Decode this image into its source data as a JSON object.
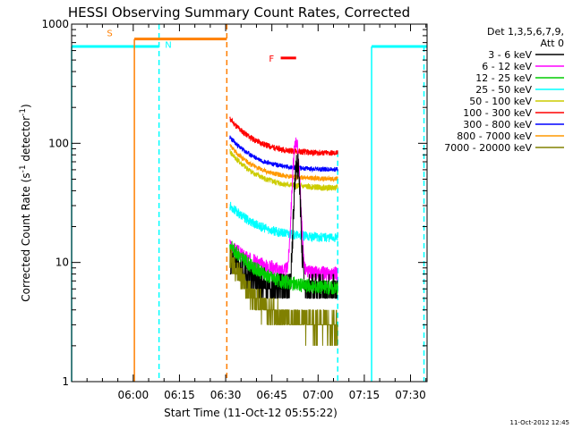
{
  "chart_data": {
    "type": "line",
    "title": "HESSI Observing Summary Count Rates, Corrected",
    "xlabel": "Start Time (11-Oct-12 05:55:22)",
    "ylabel": "Corrected Count Rate (s⁻¹ detector⁻¹)",
    "ylabel_main": "Corrected Count Rate (s",
    "ylabel_sup1": "-1",
    "ylabel_mid": " detector",
    "ylabel_sup2": "-1",
    "ylabel_end": ")",
    "footer": "11-Oct-2012 12:45",
    "yscale": "log",
    "ylim": [
      1,
      1000
    ],
    "xlim_minutes": [
      -15.37,
      100.0
    ],
    "x_units": "minutes after 05:55:22",
    "x_tick_labels": [
      "06:00",
      "06:15",
      "06:30",
      "06:45",
      "07:00",
      "07:15",
      "07:30"
    ],
    "y_tick_labels": [
      "1",
      "10",
      "100",
      "1000"
    ],
    "legend": {
      "placement": "right",
      "header_1": "Det 1,3,5,6,7,9,",
      "header_2": "Att 0",
      "entries": [
        {
          "label": "3 - 6 keV",
          "color": "#000000"
        },
        {
          "label": "6 - 12 keV",
          "color": "#ff00ff"
        },
        {
          "label": "12 - 25 keV",
          "color": "#00cc00"
        },
        {
          "label": "25 - 50 keV",
          "color": "#00ffff"
        },
        {
          "label": "50 - 100 keV",
          "color": "#cccc00"
        },
        {
          "label": "100 - 300 keV",
          "color": "#ff0000"
        },
        {
          "label": "300 - 800 keV",
          "color": "#0000ff"
        },
        {
          "label": "800 - 7000 keV",
          "color": "#ff9900"
        },
        {
          "label": "7000 - 20000 keV",
          "color": "#808000"
        }
      ]
    },
    "flags": [
      {
        "label": "S",
        "color": "#ff7f00"
      },
      {
        "label": "N",
        "color": "#00ffff"
      },
      {
        "label": "F",
        "color": "#ff0000"
      }
    ]
  }
}
